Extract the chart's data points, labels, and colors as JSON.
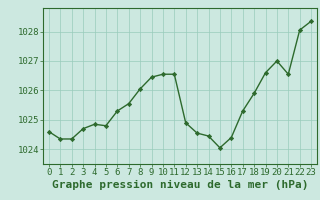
{
  "x": [
    0,
    1,
    2,
    3,
    4,
    5,
    6,
    7,
    8,
    9,
    10,
    11,
    12,
    13,
    14,
    15,
    16,
    17,
    18,
    19,
    20,
    21,
    22,
    23
  ],
  "y": [
    1024.6,
    1024.35,
    1024.35,
    1024.7,
    1024.85,
    1024.8,
    1025.3,
    1025.55,
    1026.05,
    1026.45,
    1026.55,
    1026.55,
    1024.9,
    1024.55,
    1024.45,
    1024.05,
    1024.4,
    1025.3,
    1025.9,
    1026.6,
    1027.0,
    1026.55,
    1028.05,
    1028.35
  ],
  "line_color": "#2d6a2d",
  "marker": "D",
  "marker_size": 2.2,
  "bg_color": "#cce8e0",
  "grid_color": "#99ccbb",
  "xlabel": "Graphe pression niveau de la mer (hPa)",
  "xlabel_fontsize": 8,
  "yticks": [
    1024,
    1025,
    1026,
    1027,
    1028
  ],
  "xticks": [
    0,
    1,
    2,
    3,
    4,
    5,
    6,
    7,
    8,
    9,
    10,
    11,
    12,
    13,
    14,
    15,
    16,
    17,
    18,
    19,
    20,
    21,
    22,
    23
  ],
  "ylim": [
    1023.5,
    1028.8
  ],
  "xlim": [
    -0.5,
    23.5
  ],
  "tick_color": "#2d6a2d",
  "tick_fontsize": 6.5,
  "spine_color": "#2d6a2d",
  "linewidth": 1.0
}
